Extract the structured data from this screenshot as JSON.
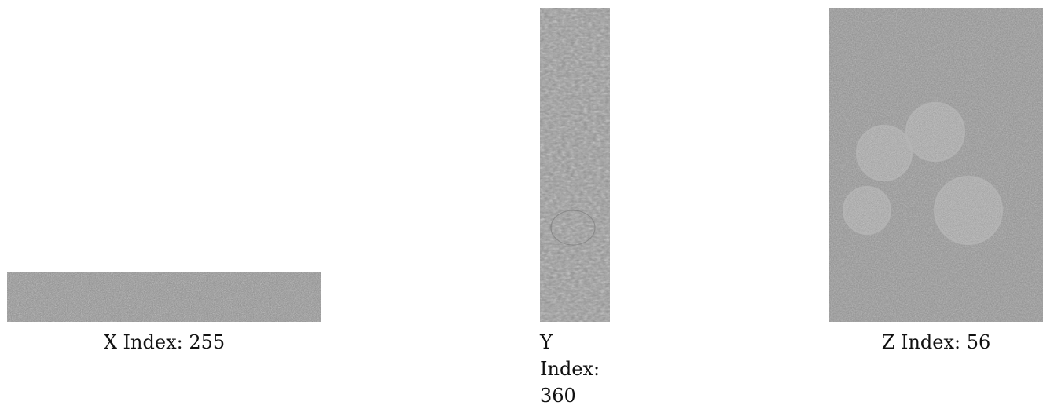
{
  "panels": {
    "x": {
      "label_prefix": "X Index:",
      "label_value": "255",
      "image_desc": "X slice"
    },
    "y": {
      "label_line1": "Y",
      "label_line2": "Index:",
      "label_line3": "360",
      "image_desc": "Y slice"
    },
    "z": {
      "label_prefix": "Z Index:",
      "label_value": "56",
      "image_desc": "Z slice"
    }
  },
  "colors": {
    "background": "#ffffff",
    "slice_gray": "#8b8b8b",
    "text": "#111111"
  }
}
